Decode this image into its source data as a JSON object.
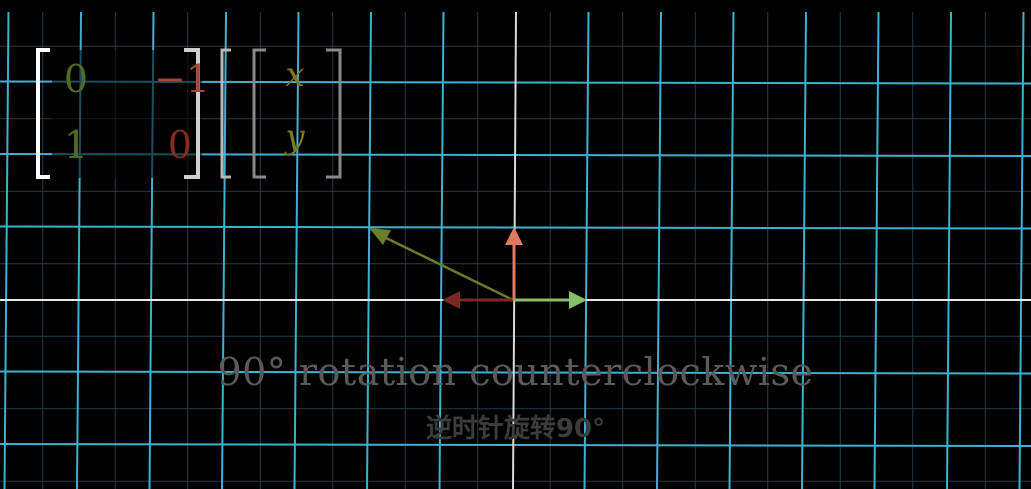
{
  "matrix": {
    "a11": "0",
    "a12": "−1",
    "a21": "1",
    "a22": "0"
  },
  "vector": {
    "v1": "x",
    "v2": "y"
  },
  "caption_en": "90° rotation counterclockwise",
  "caption_zh": "逆时针旋转90°",
  "colors": {
    "background": "#000000",
    "grid_line": "#3fb0d0",
    "faint_grid": "#2a3b44",
    "axis": "#e8e8e8",
    "basis_i_hat": "#83c167",
    "basis_j_hat": "#e07a5f",
    "transformed_i_hat": "#fc6255",
    "transformed_vector": "#6b7c2a",
    "matrix_col1": "#4f6b24",
    "matrix_col2": "#8b2a1e",
    "vector_entries": "#7a7a20",
    "bracket_matrix": "#ffffff",
    "bracket_vector": "#888888"
  }
}
